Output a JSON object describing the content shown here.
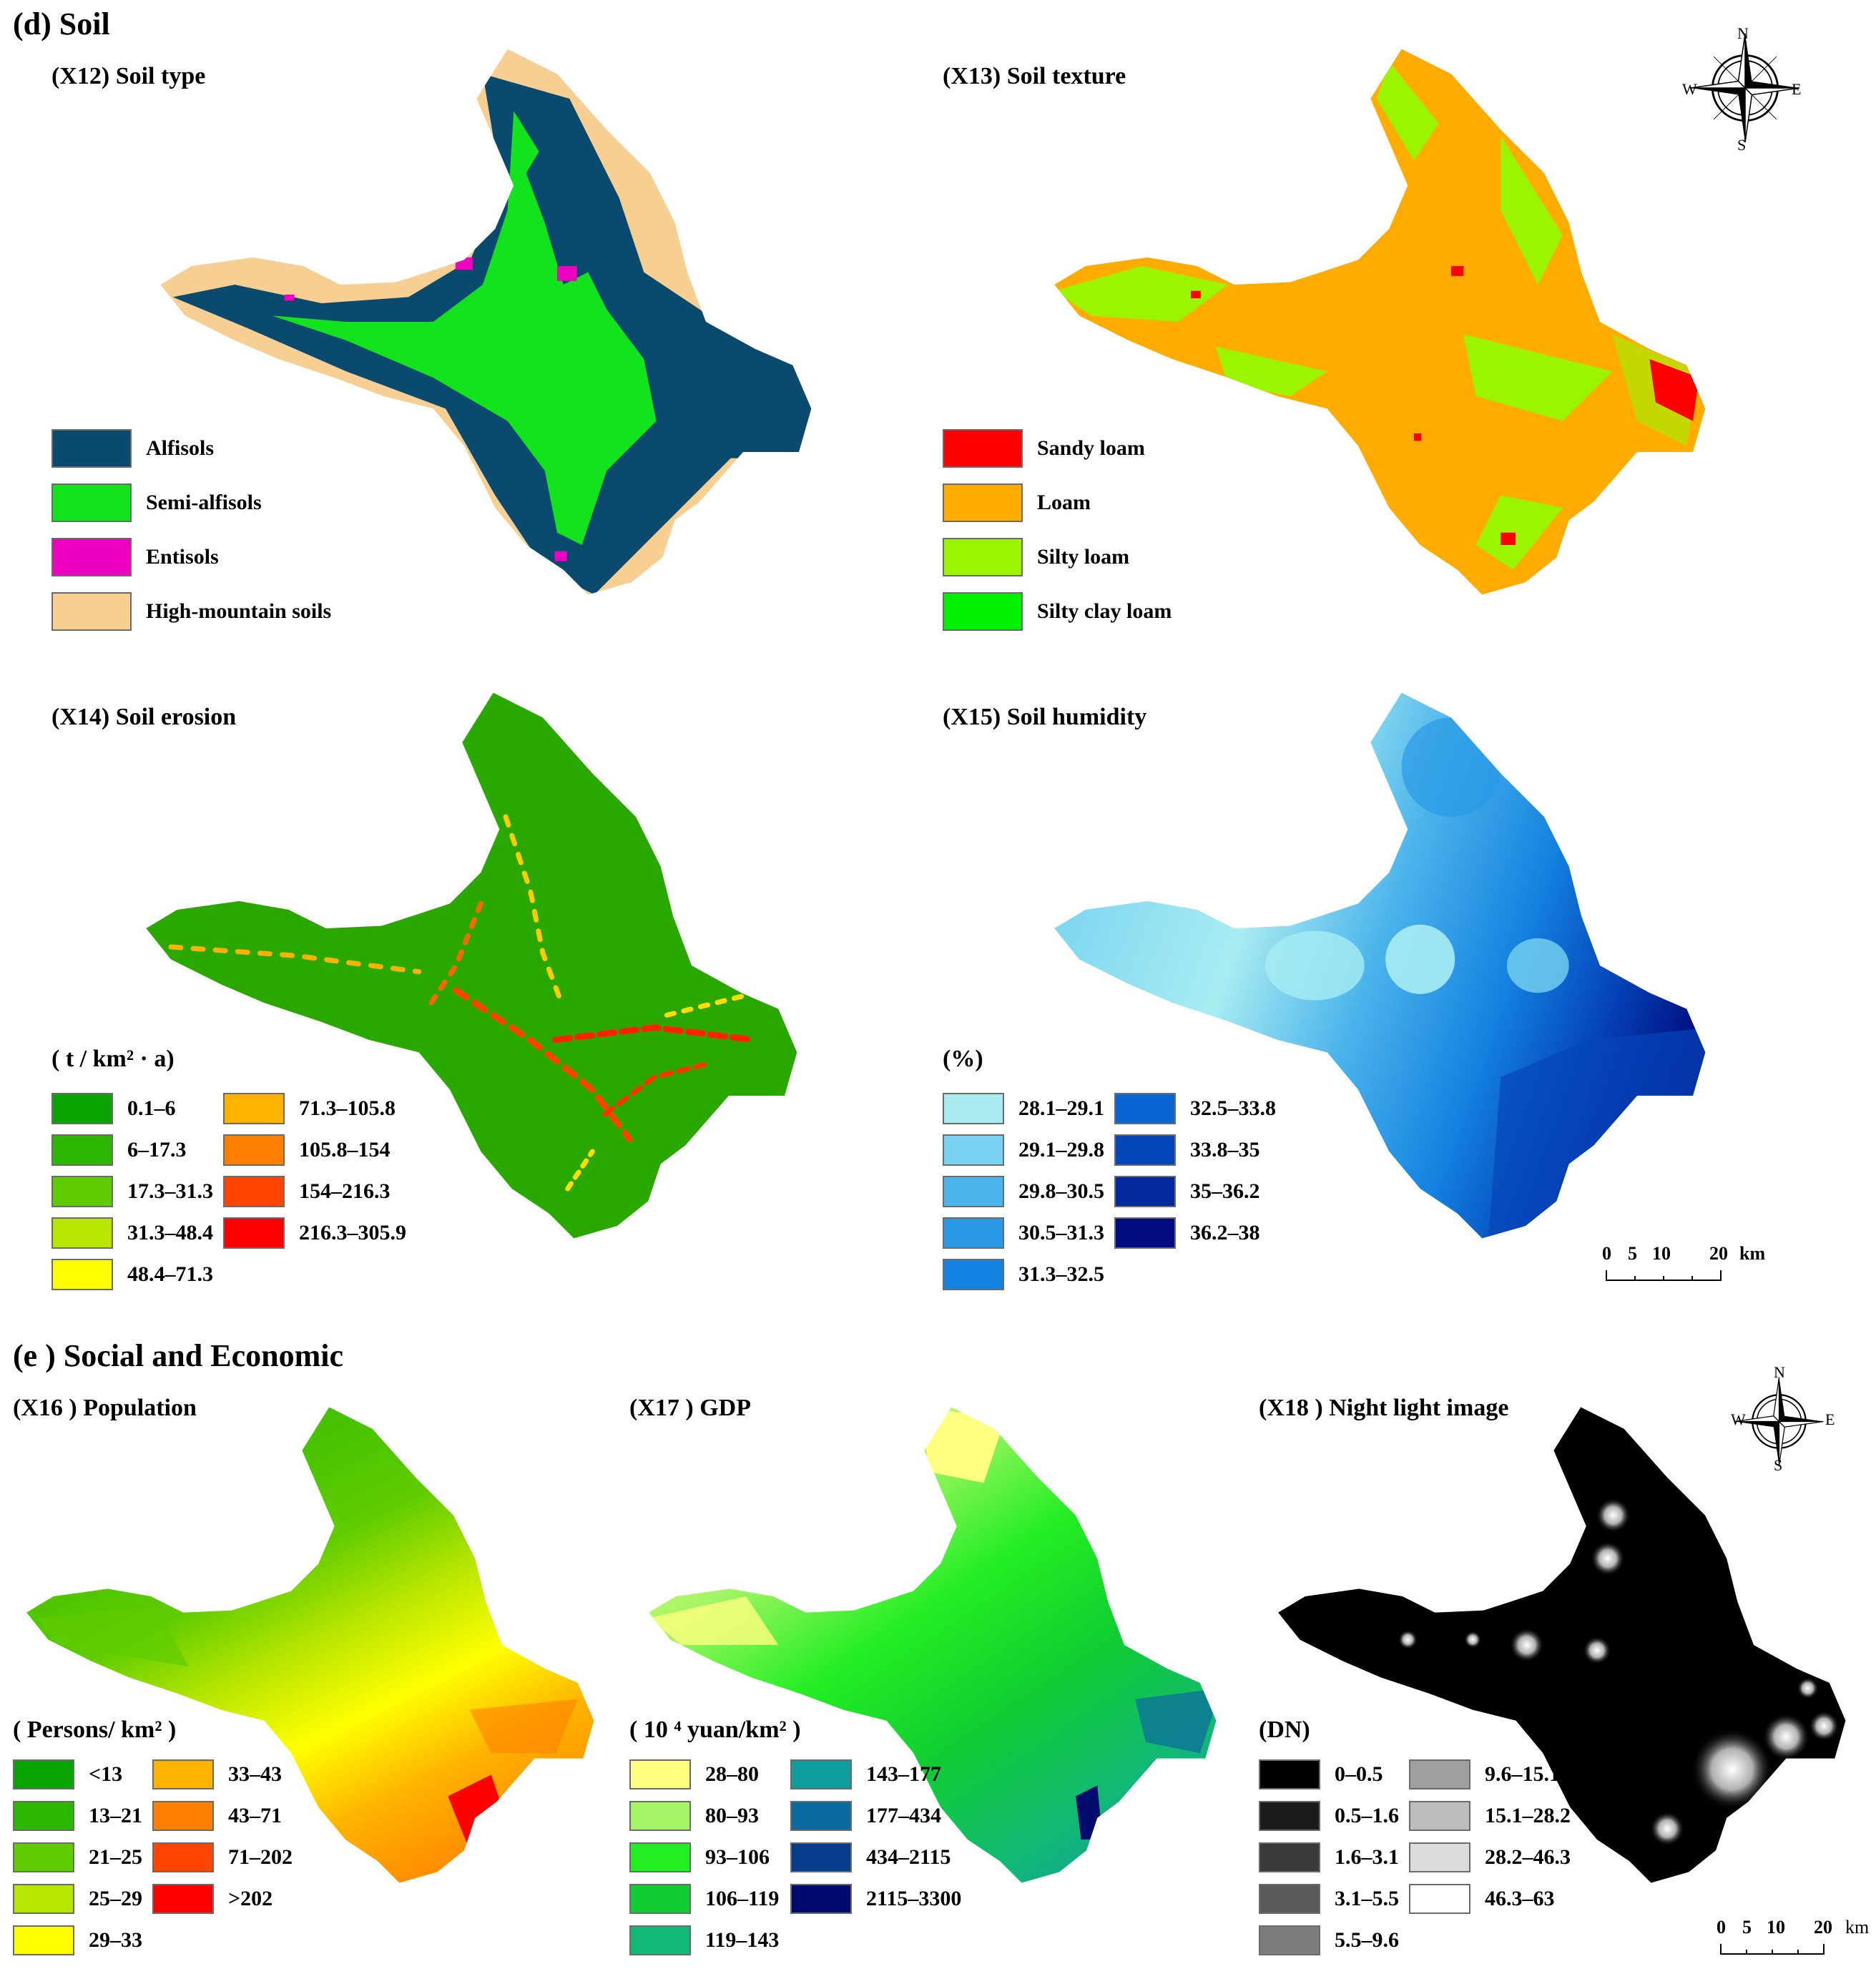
{
  "sections": {
    "soil": "(d) Soil",
    "social": "(e ) Social and Economic"
  },
  "panels": {
    "x12": {
      "title": "(X12) Soil type",
      "legend": [
        {
          "label": "Alfisols",
          "color": "#0a4a6e"
        },
        {
          "label": "Semi-alfisols",
          "color": "#13e31c"
        },
        {
          "label": "Entisols",
          "color": "#ee00c0"
        },
        {
          "label": "High-mountain soils",
          "color": "#f8cf93"
        }
      ]
    },
    "x13": {
      "title": "(X13) Soil texture",
      "legend": [
        {
          "label": "Sandy loam",
          "color": "#ff0000"
        },
        {
          "label": "Loam",
          "color": "#ffab00"
        },
        {
          "label": "Silty loam",
          "color": "#9cf500"
        },
        {
          "label": "Silty clay loam",
          "color": "#00f000"
        }
      ]
    },
    "x14": {
      "title": "(X14) Soil erosion",
      "unit": "( t / km² · a)",
      "legend": [
        {
          "label": "0.1–6",
          "color": "#0aa300"
        },
        {
          "label": "6–17.3",
          "color": "#2db800"
        },
        {
          "label": "17.3–31.3",
          "color": "#5fcc00"
        },
        {
          "label": "31.3–48.4",
          "color": "#b8e600"
        },
        {
          "label": "48.4–71.3",
          "color": "#ffff00"
        },
        {
          "label": "71.3–105.8",
          "color": "#ffb300"
        },
        {
          "label": "105.8–154",
          "color": "#ff8000"
        },
        {
          "label": "154–216.3",
          "color": "#ff4400"
        },
        {
          "label": "216.3–305.9",
          "color": "#ff0000"
        }
      ]
    },
    "x15": {
      "title": "(X15) Soil humidity",
      "unit": "(%)",
      "legend": [
        {
          "label": "28.1–29.1",
          "color": "#a8ecf2"
        },
        {
          "label": "29.1–29.8",
          "color": "#78d3f0"
        },
        {
          "label": "29.8–30.5",
          "color": "#4cb4eb"
        },
        {
          "label": "30.5–31.3",
          "color": "#2a9ae6"
        },
        {
          "label": "31.3–32.5",
          "color": "#1482e0"
        },
        {
          "label": "32.5–33.8",
          "color": "#0a64d2"
        },
        {
          "label": "33.8–35",
          "color": "#0546b9"
        },
        {
          "label": "35–36.2",
          "color": "#02289b"
        },
        {
          "label": "36.2–38",
          "color": "#000c80"
        }
      ]
    },
    "x16": {
      "title": "(X16 ) Population",
      "unit": "( Persons/ km² )",
      "legend": [
        {
          "label": "<13",
          "color": "#0aa300"
        },
        {
          "label": "13–21",
          "color": "#2db800"
        },
        {
          "label": "21–25",
          "color": "#5fcc00"
        },
        {
          "label": "25–29",
          "color": "#b8e600"
        },
        {
          "label": "29–33",
          "color": "#ffff00"
        },
        {
          "label": "33–43",
          "color": "#ffb300"
        },
        {
          "label": "43–71",
          "color": "#ff8000"
        },
        {
          "label": "71–202",
          "color": "#ff4400"
        },
        {
          "label": ">202",
          "color": "#ff0000"
        }
      ]
    },
    "x17": {
      "title": "(X17 ) GDP",
      "unit": "( 10 ⁴ yuan/km² )",
      "legend": [
        {
          "label": "28–80",
          "color": "#ffff80"
        },
        {
          "label": "80–93",
          "color": "#a3f565"
        },
        {
          "label": "93–106",
          "color": "#22ee22"
        },
        {
          "label": "106–119",
          "color": "#11cc33"
        },
        {
          "label": "119–143",
          "color": "#11b877"
        },
        {
          "label": "143–177",
          "color": "#0e9c9c"
        },
        {
          "label": "177–434",
          "color": "#0b6aa0"
        },
        {
          "label": "434–2115",
          "color": "#073c8c"
        },
        {
          "label": "2115–3300",
          "color": "#000b6e"
        }
      ]
    },
    "x18": {
      "title": "(X18 ) Night light image",
      "unit": "(DN)",
      "legend": [
        {
          "label": "0–0.5",
          "color": "#000000"
        },
        {
          "label": "0.5–1.6",
          "color": "#1c1c1c"
        },
        {
          "label": "1.6–3.1",
          "color": "#3a3a3a"
        },
        {
          "label": "3.1–5.5",
          "color": "#5a5a5a"
        },
        {
          "label": "5.5–9.6",
          "color": "#7c7c7c"
        },
        {
          "label": "9.6–15.1",
          "color": "#9f9f9f"
        },
        {
          "label": "15.1–28.2",
          "color": "#bdbdbd"
        },
        {
          "label": "28.2–46.3",
          "color": "#dcdcdc"
        },
        {
          "label": "46.3–63",
          "color": "#ffffff"
        }
      ]
    }
  },
  "compass": {
    "n": "N",
    "s": "S",
    "e": "E",
    "w": "W"
  },
  "scalebar": {
    "ticks": [
      "0",
      "5",
      "10",
      "20"
    ],
    "unit": "km"
  }
}
